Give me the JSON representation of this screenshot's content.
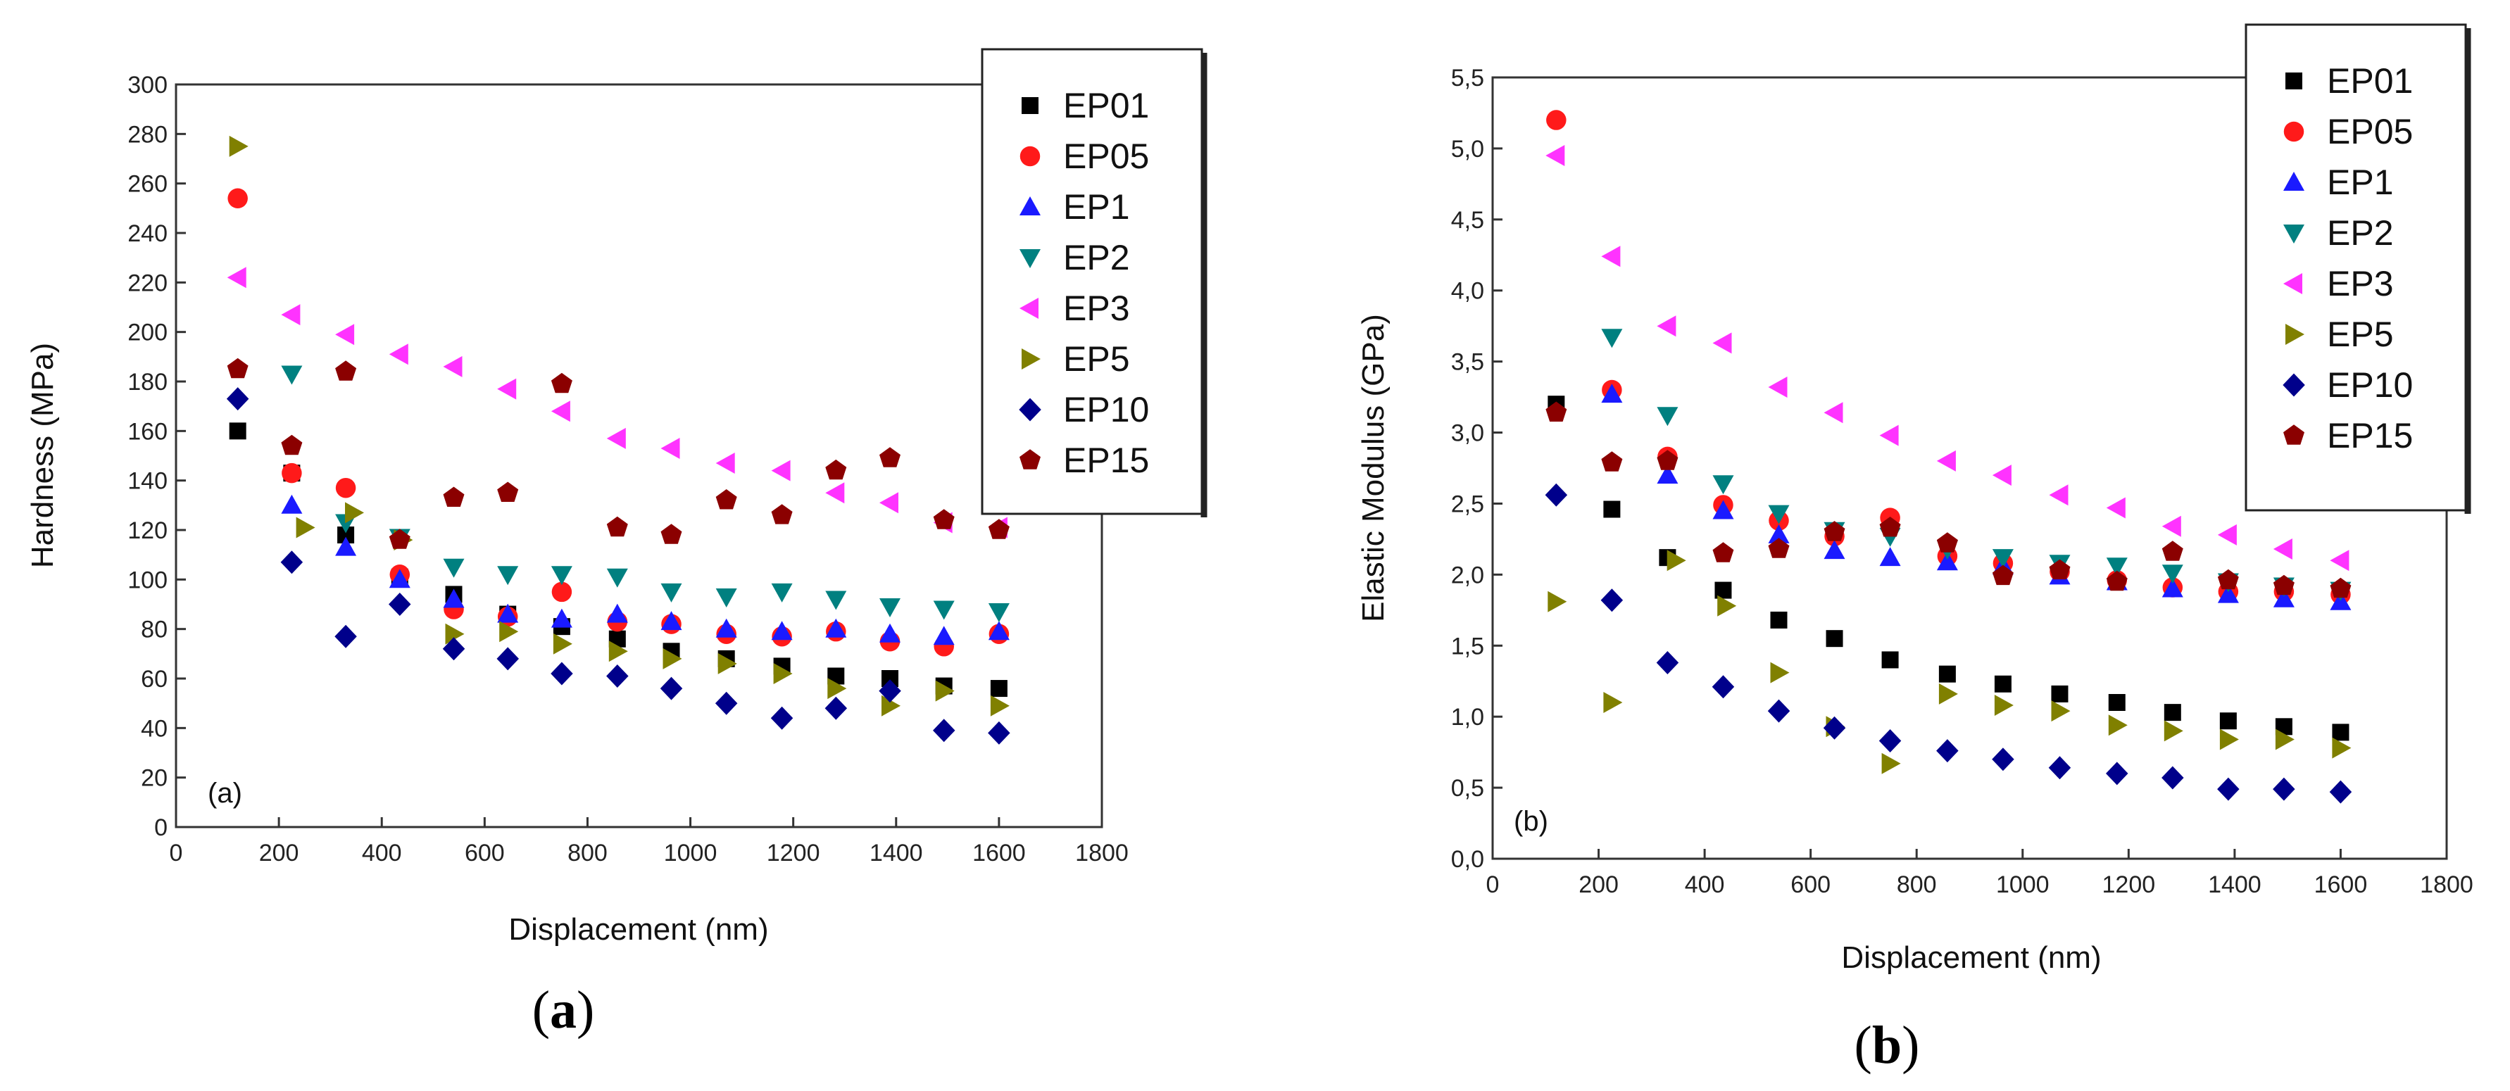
{
  "chart_data": [
    {
      "type": "scatter",
      "panel_label": "(a)",
      "caption": "a",
      "xlabel": "Displacement (nm)",
      "ylabel": "Hardness (MPa)",
      "xlim": [
        0,
        1800
      ],
      "ylim": [
        0,
        300
      ],
      "xticks": [
        "0",
        "200",
        "400",
        "600",
        "800",
        "1000",
        "1200",
        "1400",
        "1600",
        "1800"
      ],
      "yticks": [
        "0",
        "20",
        "40",
        "60",
        "80",
        "100",
        "120",
        "140",
        "160",
        "180",
        "200",
        "220",
        "240",
        "260",
        "280",
        "300"
      ],
      "legend_position": "top-right",
      "series": [
        {
          "name": "EP01",
          "marker": "square",
          "color": "#000000",
          "x": [
            120,
            225,
            330,
            435,
            540,
            645,
            750,
            858,
            963,
            1070,
            1178,
            1283,
            1388,
            1493,
            1600
          ],
          "y": [
            160,
            143,
            118,
            101,
            94,
            86,
            81,
            76,
            71,
            68,
            65,
            61,
            60,
            57,
            56
          ]
        },
        {
          "name": "EP05",
          "marker": "circle",
          "color": "#ff1a1a",
          "x": [
            120,
            225,
            330,
            435,
            540,
            645,
            750,
            858,
            963,
            1070,
            1178,
            1283,
            1388,
            1493,
            1600
          ],
          "y": [
            254,
            143,
            137,
            102,
            88,
            85,
            95,
            83,
            82,
            78,
            77,
            79,
            75,
            73,
            78
          ]
        },
        {
          "name": "EP1",
          "marker": "triangle-up",
          "color": "#1a1aff",
          "x": [
            225,
            330,
            435,
            540,
            645,
            750,
            858,
            963,
            1070,
            1178,
            1283,
            1388,
            1493,
            1600
          ],
          "y": [
            130,
            113,
            100,
            92,
            86,
            84,
            86,
            83,
            80,
            79,
            80,
            78,
            77,
            79
          ]
        },
        {
          "name": "EP2",
          "marker": "triangle-down",
          "color": "#008080",
          "x": [
            225,
            330,
            435,
            540,
            645,
            750,
            858,
            963,
            1070,
            1178,
            1283,
            1388,
            1493,
            1600
          ],
          "y": [
            183,
            123,
            117,
            105,
            102,
            102,
            101,
            95,
            93,
            95,
            92,
            89,
            88,
            87
          ]
        },
        {
          "name": "EP3",
          "marker": "triangle-left",
          "color": "#ff33ff",
          "x": [
            120,
            225,
            330,
            435,
            540,
            645,
            750,
            858,
            963,
            1070,
            1178,
            1283,
            1388,
            1493,
            1600
          ],
          "y": [
            222,
            207,
            199,
            191,
            186,
            177,
            168,
            157,
            153,
            147,
            144,
            135,
            131,
            123,
            121
          ]
        },
        {
          "name": "EP5",
          "marker": "triangle-right",
          "color": "#808000",
          "x": [
            120,
            250,
            345,
            440,
            540,
            645,
            750,
            858,
            963,
            1070,
            1178,
            1283,
            1388,
            1493,
            1600
          ],
          "y": [
            275,
            121,
            127,
            116,
            78,
            79,
            74,
            71,
            68,
            66,
            62,
            56,
            49,
            55,
            49
          ]
        },
        {
          "name": "EP10",
          "marker": "diamond",
          "color": "#00008b",
          "x": [
            120,
            225,
            330,
            435,
            540,
            645,
            750,
            858,
            963,
            1070,
            1178,
            1283,
            1388,
            1493,
            1600
          ],
          "y": [
            173,
            107,
            77,
            90,
            72,
            68,
            62,
            61,
            56,
            50,
            44,
            48,
            55,
            39,
            38
          ]
        },
        {
          "name": "EP15",
          "marker": "pentagon",
          "color": "#8b0000",
          "x": [
            120,
            225,
            330,
            435,
            540,
            645,
            750,
            858,
            963,
            1070,
            1178,
            1283,
            1388,
            1493,
            1600
          ],
          "y": [
            185,
            154,
            184,
            116,
            133,
            135,
            179,
            121,
            118,
            132,
            126,
            144,
            149,
            124,
            120
          ]
        }
      ]
    },
    {
      "type": "scatter",
      "panel_label": "(b)",
      "caption": "b",
      "xlabel": "Displacement (nm)",
      "ylabel": "Elastic Modulus (GPa)",
      "xlim": [
        0,
        1800
      ],
      "ylim": [
        0,
        5.5
      ],
      "xticks": [
        "0",
        "200",
        "400",
        "600",
        "800",
        "1000",
        "1200",
        "1400",
        "1600",
        "1800"
      ],
      "yticks": [
        "0,0",
        "0,5",
        "1,0",
        "1,5",
        "2,0",
        "2,5",
        "3,0",
        "3,5",
        "4,0",
        "4,5",
        "5,0",
        "5,5"
      ],
      "legend_position": "top-right",
      "series": [
        {
          "name": "EP01",
          "marker": "square",
          "color": "#000000",
          "x": [
            120,
            225,
            330,
            435,
            540,
            645,
            750,
            858,
            963,
            1070,
            1178,
            1283,
            1388,
            1493,
            1600
          ],
          "y": [
            3.2,
            2.46,
            2.12,
            1.89,
            1.68,
            1.55,
            1.4,
            1.3,
            1.23,
            1.16,
            1.1,
            1.03,
            0.97,
            0.93,
            0.89
          ]
        },
        {
          "name": "EP05",
          "marker": "circle",
          "color": "#ff1a1a",
          "x": [
            120,
            225,
            330,
            435,
            540,
            645,
            750,
            858,
            963,
            1070,
            1178,
            1283,
            1388,
            1493,
            1600
          ],
          "y": [
            5.2,
            3.3,
            2.83,
            2.49,
            2.38,
            2.27,
            2.4,
            2.13,
            2.08,
            2.02,
            1.96,
            1.91,
            1.88,
            1.88,
            1.86
          ]
        },
        {
          "name": "EP1",
          "marker": "triangle-up",
          "color": "#1a1aff",
          "x": [
            225,
            330,
            435,
            540,
            645,
            750,
            858,
            963,
            1070,
            1178,
            1283,
            1388,
            1493,
            1600
          ],
          "y": [
            3.27,
            2.7,
            2.45,
            2.28,
            2.17,
            2.12,
            2.09,
            2.06,
            1.99,
            1.95,
            1.9,
            1.86,
            1.83,
            1.81
          ]
        },
        {
          "name": "EP2",
          "marker": "triangle-down",
          "color": "#008080",
          "x": [
            225,
            330,
            435,
            540,
            645,
            750,
            858,
            963,
            1070,
            1178,
            1283,
            1388,
            1493,
            1600
          ],
          "y": [
            3.67,
            3.12,
            2.64,
            2.43,
            2.31,
            2.27,
            2.18,
            2.12,
            2.08,
            2.06,
            2.01,
            1.95,
            1.92,
            1.89
          ]
        },
        {
          "name": "EP3",
          "marker": "triangle-left",
          "color": "#ff33ff",
          "x": [
            120,
            225,
            330,
            435,
            540,
            645,
            750,
            858,
            963,
            1070,
            1178,
            1283,
            1388,
            1493,
            1600
          ],
          "y": [
            4.95,
            4.24,
            3.75,
            3.63,
            3.32,
            3.14,
            2.98,
            2.8,
            2.7,
            2.56,
            2.47,
            2.34,
            2.28,
            2.18,
            2.1
          ]
        },
        {
          "name": "EP5",
          "marker": "triangle-right",
          "color": "#808000",
          "x": [
            120,
            225,
            345,
            440,
            540,
            645,
            750,
            858,
            963,
            1070,
            1178,
            1283,
            1388,
            1493,
            1600
          ],
          "y": [
            1.81,
            1.1,
            2.1,
            1.78,
            1.31,
            0.93,
            0.67,
            1.16,
            1.08,
            1.04,
            0.94,
            0.9,
            0.84,
            0.84,
            0.78
          ]
        },
        {
          "name": "EP10",
          "marker": "diamond",
          "color": "#00008b",
          "x": [
            120,
            225,
            330,
            435,
            540,
            645,
            750,
            858,
            963,
            1070,
            1178,
            1283,
            1388,
            1493,
            1600
          ],
          "y": [
            2.56,
            1.82,
            1.38,
            1.21,
            1.04,
            0.92,
            0.83,
            0.76,
            0.7,
            0.64,
            0.6,
            0.57,
            0.49,
            0.49,
            0.47
          ]
        },
        {
          "name": "EP15",
          "marker": "pentagon",
          "color": "#8b0000",
          "x": [
            120,
            225,
            330,
            435,
            540,
            645,
            750,
            858,
            963,
            1070,
            1178,
            1283,
            1388,
            1493,
            1600
          ],
          "y": [
            3.14,
            2.79,
            2.8,
            2.15,
            2.18,
            2.3,
            2.33,
            2.22,
            1.99,
            2.03,
            1.95,
            2.16,
            1.96,
            1.92,
            1.9
          ]
        }
      ]
    }
  ]
}
